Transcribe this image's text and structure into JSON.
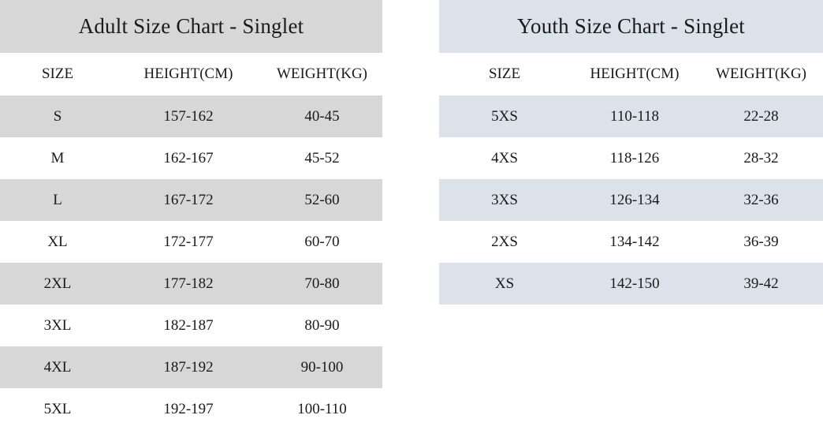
{
  "adult": {
    "title": "Adult Size Chart - Singlet",
    "headers": [
      "SIZE",
      "HEIGHT(CM)",
      "WEIGHT(KG)"
    ],
    "rows": [
      [
        "S",
        "157-162",
        "40-45"
      ],
      [
        "M",
        "162-167",
        "45-52"
      ],
      [
        "L",
        "167-172",
        "52-60"
      ],
      [
        "XL",
        "172-177",
        "60-70"
      ],
      [
        "2XL",
        "177-182",
        "70-80"
      ],
      [
        "3XL",
        "182-187",
        "80-90"
      ],
      [
        "4XL",
        "187-192",
        "90-100"
      ],
      [
        "5XL",
        "192-197",
        "100-110"
      ]
    ]
  },
  "youth": {
    "title": "Youth Size Chart - Singlet",
    "headers": [
      "SIZE",
      "HEIGHT(CM)",
      "WEIGHT(KG)"
    ],
    "rows": [
      [
        "5XS",
        "110-118",
        "22-28"
      ],
      [
        "4XS",
        "118-126",
        "28-32"
      ],
      [
        "3XS",
        "126-134",
        "32-36"
      ],
      [
        "2XS",
        "134-142",
        "36-39"
      ],
      [
        "XS",
        "142-150",
        "39-42"
      ]
    ]
  },
  "colors": {
    "adult_band": "#d7d7d7",
    "youth_band": "#dbe2ea",
    "text": "#1a1a1a"
  }
}
